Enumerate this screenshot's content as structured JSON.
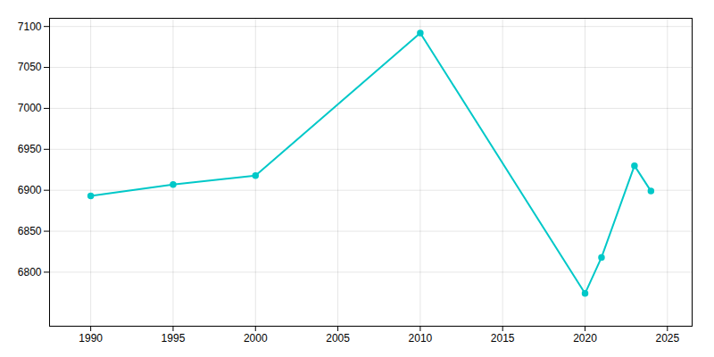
{
  "chart_data": {
    "type": "line",
    "x": [
      1990,
      1995,
      2000,
      2010,
      2020,
      2021,
      2023,
      2024
    ],
    "values": [
      6893,
      6907,
      6918,
      7092,
      6774,
      6818,
      6930,
      6899
    ],
    "color": "#00C8C8",
    "marker": "circle",
    "xlim": [
      1987.5,
      2026.5
    ],
    "xticks": [
      1990,
      1995,
      2000,
      2005,
      2010,
      2015,
      2020,
      2025
    ],
    "ylim": [
      6734,
      7110
    ],
    "yticks": [
      6800,
      6850,
      6900,
      6950,
      7000,
      7050,
      7100
    ],
    "grid": true
  }
}
